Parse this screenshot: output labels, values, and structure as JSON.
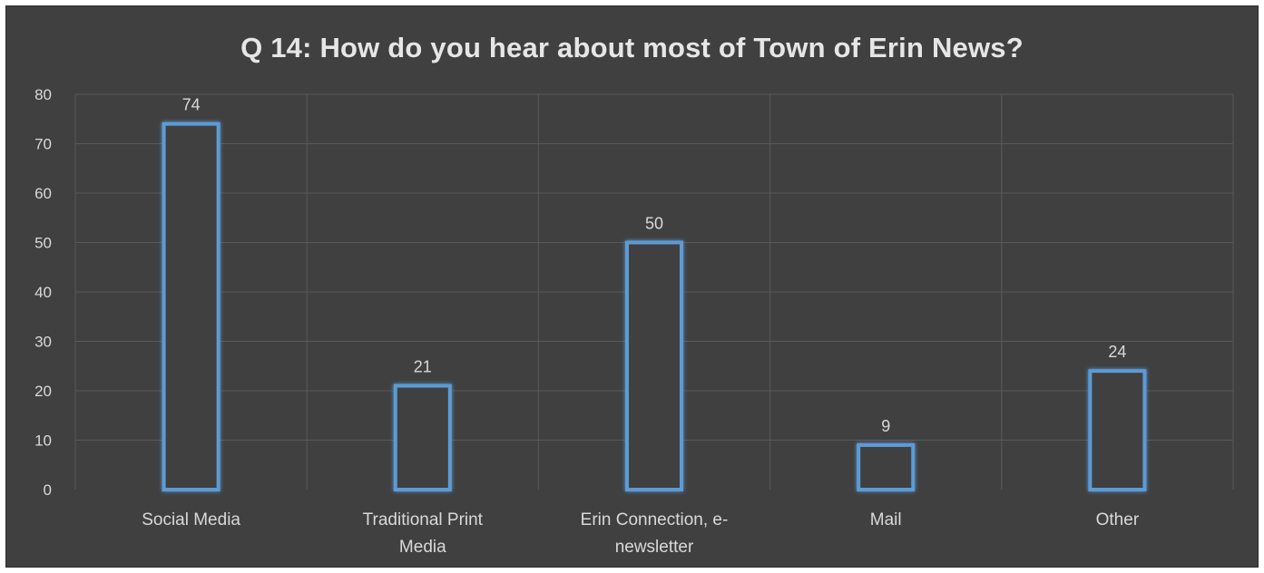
{
  "chart_data": {
    "type": "bar",
    "title": "Q 14: How do you hear about most of Town of Erin News?",
    "categories": [
      [
        "Social Media"
      ],
      [
        "Traditional Print",
        "Media"
      ],
      [
        "Erin Connection, e-",
        "newsletter"
      ],
      [
        "Mail"
      ],
      [
        "Other"
      ]
    ],
    "values": [
      74,
      21,
      50,
      9,
      24
    ],
    "ylim": [
      0,
      80
    ],
    "yticks": [
      0,
      10,
      20,
      30,
      40,
      50,
      60,
      70,
      80
    ],
    "xlabel": "",
    "ylabel": "",
    "grid": true,
    "legend": "none",
    "colors": {
      "background": "#404040",
      "bar_outline": "#5b9bd5",
      "bar_fill": "#404040",
      "grid": "#595959",
      "text": "#d9d9d9"
    }
  }
}
